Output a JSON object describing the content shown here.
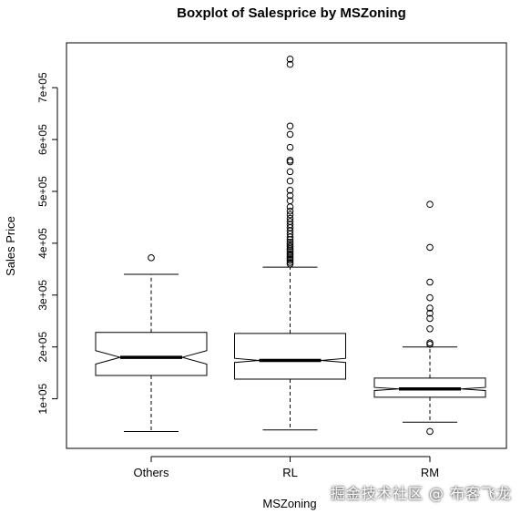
{
  "chart_data": {
    "type": "boxplot",
    "title": "Boxplot of Salesprice by  MSZoning",
    "xlabel": "MSZoning",
    "ylabel": "Sales Price",
    "ylim": [
      0,
      800000
    ],
    "yticks": [
      100000,
      200000,
      300000,
      400000,
      500000,
      600000,
      700000
    ],
    "ytick_labels": [
      "1e+05",
      "2e+05",
      "3e+05",
      "4e+05",
      "5e+05",
      "6e+05",
      "7e+05"
    ],
    "notched": true,
    "categories": [
      "Others",
      "RL",
      "RM"
    ],
    "boxes": [
      {
        "name": "Others",
        "whisker_low": 37000,
        "q1": 145000,
        "notch_low": 167000,
        "median": 180000,
        "notch_high": 193000,
        "q3": 228000,
        "whisker_high": 340000,
        "outliers": [
          372000
        ]
      },
      {
        "name": "RL",
        "whisker_low": 40000,
        "q1": 138000,
        "notch_low": 170000,
        "median": 174000,
        "notch_high": 178000,
        "q3": 226000,
        "whisker_high": 354000,
        "outliers": [
          360000,
          363000,
          367000,
          370000,
          373000,
          377000,
          380000,
          384000,
          387000,
          390000,
          394000,
          398000,
          402000,
          407000,
          412000,
          418000,
          424000,
          430000,
          436000,
          442000,
          448000,
          455000,
          462000,
          470000,
          482000,
          492000,
          502000,
          520000,
          538000,
          557000,
          560000,
          585000,
          610000,
          626000,
          745000,
          755000
        ]
      },
      {
        "name": "RM",
        "whisker_low": 55000,
        "q1": 103000,
        "notch_low": 116000,
        "median": 119000,
        "notch_high": 122000,
        "q3": 140000,
        "whisker_high": 200000,
        "outliers": [
          37000,
          205000,
          208000,
          235000,
          255000,
          265000,
          275000,
          295000,
          325000,
          392000,
          475000
        ]
      }
    ]
  },
  "watermark": "掘金技术社区 @ 布客飞龙"
}
